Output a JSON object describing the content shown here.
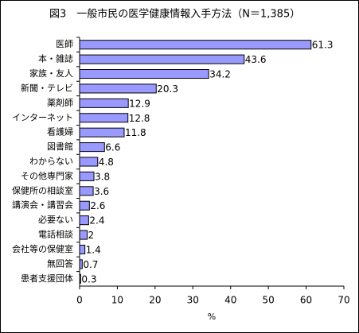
{
  "chart_data": {
    "type": "bar",
    "orientation": "horizontal",
    "title": "図3　一般市民の医学健康情報入手方法（N＝1,385）",
    "categories": [
      "医師",
      "本・雑誌",
      "家族・友人",
      "新聞・テレビ",
      "薬剤師",
      "インターネット",
      "看護婦",
      "図書館",
      "わからない",
      "その他専門家",
      "保健所の相談室",
      "講演会・講習会",
      "必要ない",
      "電話相談",
      "会社等の保健室",
      "無回答",
      "患者支援団体"
    ],
    "values": [
      61.3,
      43.6,
      34.2,
      20.3,
      12.9,
      12.8,
      11.8,
      6.6,
      4.8,
      3.8,
      3.6,
      2.6,
      2.4,
      2,
      1.4,
      0.7,
      0.3
    ],
    "color": "#9999ff",
    "xlabel": "%",
    "xlim": [
      0,
      70
    ],
    "xticks": [
      0,
      10,
      20,
      30,
      40,
      50,
      60,
      70
    ],
    "grid": false
  }
}
